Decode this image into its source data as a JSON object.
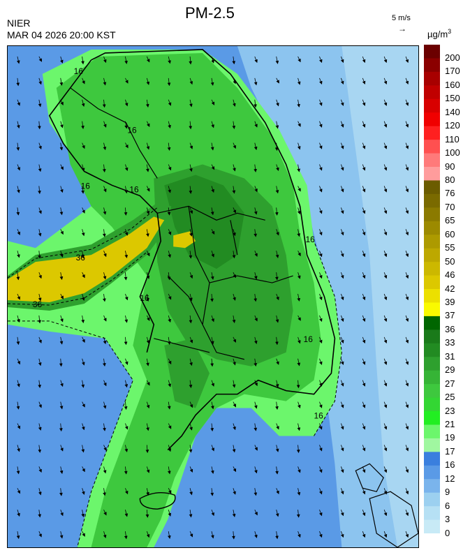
{
  "header": {
    "title": "PM-2.5",
    "org": "NIER",
    "datetime": "MAR 04 2026 20:00 KST",
    "vector_label": "5 m/s",
    "vector_arrow": "→",
    "unit_main": "µg/m",
    "unit_sup": "3"
  },
  "legend": {
    "labels": [
      "200",
      "170",
      "160",
      "150",
      "140",
      "120",
      "110",
      "100",
      "90",
      "80",
      "76",
      "70",
      "65",
      "60",
      "55",
      "50",
      "46",
      "42",
      "39",
      "37",
      "36",
      "33",
      "31",
      "29",
      "27",
      "25",
      "23",
      "21",
      "19",
      "17",
      "16",
      "12",
      "9",
      "6",
      "3",
      "0"
    ],
    "colors": [
      "#6b0000",
      "#8b0000",
      "#a80000",
      "#c00000",
      "#d80000",
      "#f00000",
      "#ff2020",
      "#ff5050",
      "#ff7a7a",
      "#ff9c9c",
      "#6b5c00",
      "#7a6a00",
      "#8b7a00",
      "#9c8a00",
      "#ad9a00",
      "#bda800",
      "#ccb800",
      "#dcc800",
      "#ece000",
      "#fafa00",
      "#006600",
      "#1a7a1a",
      "#228b22",
      "#2ea02e",
      "#36b436",
      "#3ec83e",
      "#33d633",
      "#22ee22",
      "#6cf66c",
      "#a0f7a0",
      "#3a7fde",
      "#5a9ae6",
      "#7ab4ec",
      "#9cd0f0",
      "#b6e0f4",
      "#c8eaf6"
    ]
  },
  "map": {
    "contour_labels": [
      "16",
      "16",
      "16",
      "36",
      "36",
      "16",
      "16",
      "16",
      "16",
      "16"
    ],
    "fill_colors": {
      "sea": "#5a9ae6",
      "sea_light": "#8cc4ef",
      "green_dark": "#228b22",
      "green_mid": "#2ea02e",
      "green": "#3ec83e",
      "green_light": "#6cf66c",
      "yellow": "#dcc800"
    }
  }
}
